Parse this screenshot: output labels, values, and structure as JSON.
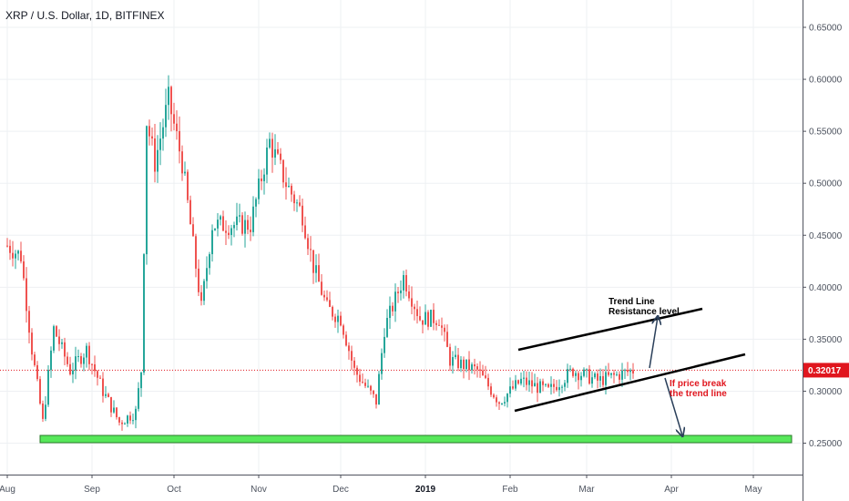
{
  "title": "XRP / U.S. Dollar, 1D, BITFINEX",
  "colors": {
    "up": "#26a69a",
    "down": "#ef5350",
    "current": "#e0161e",
    "support": "#57e85a"
  },
  "chart_data": {
    "type": "candlestick",
    "title": "XRP / U.S. Dollar, 1D, BITFINEX",
    "ylim": [
      0.24,
      0.665
    ],
    "price_ticks": [
      "0.65000",
      "0.60000",
      "0.55000",
      "0.50000",
      "0.45000",
      "0.40000",
      "0.35000",
      "0.30000",
      "0.25000"
    ],
    "time_ticks": [
      {
        "label": "Aug",
        "date": "2018-08-01",
        "bold": false
      },
      {
        "label": "Sep",
        "date": "2018-09-01",
        "bold": false
      },
      {
        "label": "Oct",
        "date": "2018-10-01",
        "bold": false
      },
      {
        "label": "Nov",
        "date": "2018-11-01",
        "bold": false
      },
      {
        "label": "Dec",
        "date": "2018-12-01",
        "bold": false
      },
      {
        "label": "2019",
        "date": "2019-01-01",
        "bold": true
      },
      {
        "label": "Feb",
        "date": "2019-02-01",
        "bold": false
      },
      {
        "label": "Mar",
        "date": "2019-03-01",
        "bold": false
      },
      {
        "label": "Apr",
        "date": "2019-04-01",
        "bold": false
      },
      {
        "label": "May",
        "date": "2019-05-01",
        "bold": false
      }
    ],
    "current_price": {
      "label": "0.32017",
      "value": 0.32017
    },
    "closes": [
      {
        "date": "2018-08-01",
        "close": 0.44
      },
      {
        "date": "2018-08-06",
        "close": 0.43
      },
      {
        "date": "2018-08-10",
        "close": 0.34
      },
      {
        "date": "2018-08-14",
        "close": 0.27
      },
      {
        "date": "2018-08-18",
        "close": 0.36
      },
      {
        "date": "2018-08-24",
        "close": 0.32
      },
      {
        "date": "2018-08-30",
        "close": 0.34
      },
      {
        "date": "2018-09-05",
        "close": 0.3
      },
      {
        "date": "2018-09-11",
        "close": 0.27
      },
      {
        "date": "2018-09-17",
        "close": 0.28
      },
      {
        "date": "2018-09-19",
        "close": 0.32
      },
      {
        "date": "2018-09-21",
        "close": 0.56
      },
      {
        "date": "2018-09-24",
        "close": 0.52
      },
      {
        "date": "2018-09-29",
        "close": 0.58
      },
      {
        "date": "2018-10-04",
        "close": 0.52
      },
      {
        "date": "2018-10-11",
        "close": 0.38
      },
      {
        "date": "2018-10-15",
        "close": 0.46
      },
      {
        "date": "2018-10-22",
        "close": 0.46
      },
      {
        "date": "2018-10-29",
        "close": 0.46
      },
      {
        "date": "2018-11-05",
        "close": 0.54
      },
      {
        "date": "2018-11-11",
        "close": 0.5
      },
      {
        "date": "2018-11-17",
        "close": 0.47
      },
      {
        "date": "2018-11-21",
        "close": 0.42
      },
      {
        "date": "2018-11-26",
        "close": 0.38
      },
      {
        "date": "2018-12-01",
        "close": 0.37
      },
      {
        "date": "2018-12-06",
        "close": 0.32
      },
      {
        "date": "2018-12-14",
        "close": 0.29
      },
      {
        "date": "2018-12-17",
        "close": 0.36
      },
      {
        "date": "2018-12-24",
        "close": 0.41
      },
      {
        "date": "2018-12-30",
        "close": 0.37
      },
      {
        "date": "2019-01-06",
        "close": 0.37
      },
      {
        "date": "2019-01-10",
        "close": 0.33
      },
      {
        "date": "2019-01-20",
        "close": 0.32
      },
      {
        "date": "2019-01-28",
        "close": 0.29
      },
      {
        "date": "2019-02-05",
        "close": 0.31
      },
      {
        "date": "2019-02-15",
        "close": 0.3
      },
      {
        "date": "2019-02-24",
        "close": 0.32
      },
      {
        "date": "2019-03-05",
        "close": 0.31
      },
      {
        "date": "2019-03-18",
        "close": 0.32
      }
    ]
  },
  "annotations": {
    "trend_line_title": "Trend Line",
    "resistance_label": "Resistance level",
    "break_line1": "If price break",
    "break_line2": "the trend line"
  }
}
